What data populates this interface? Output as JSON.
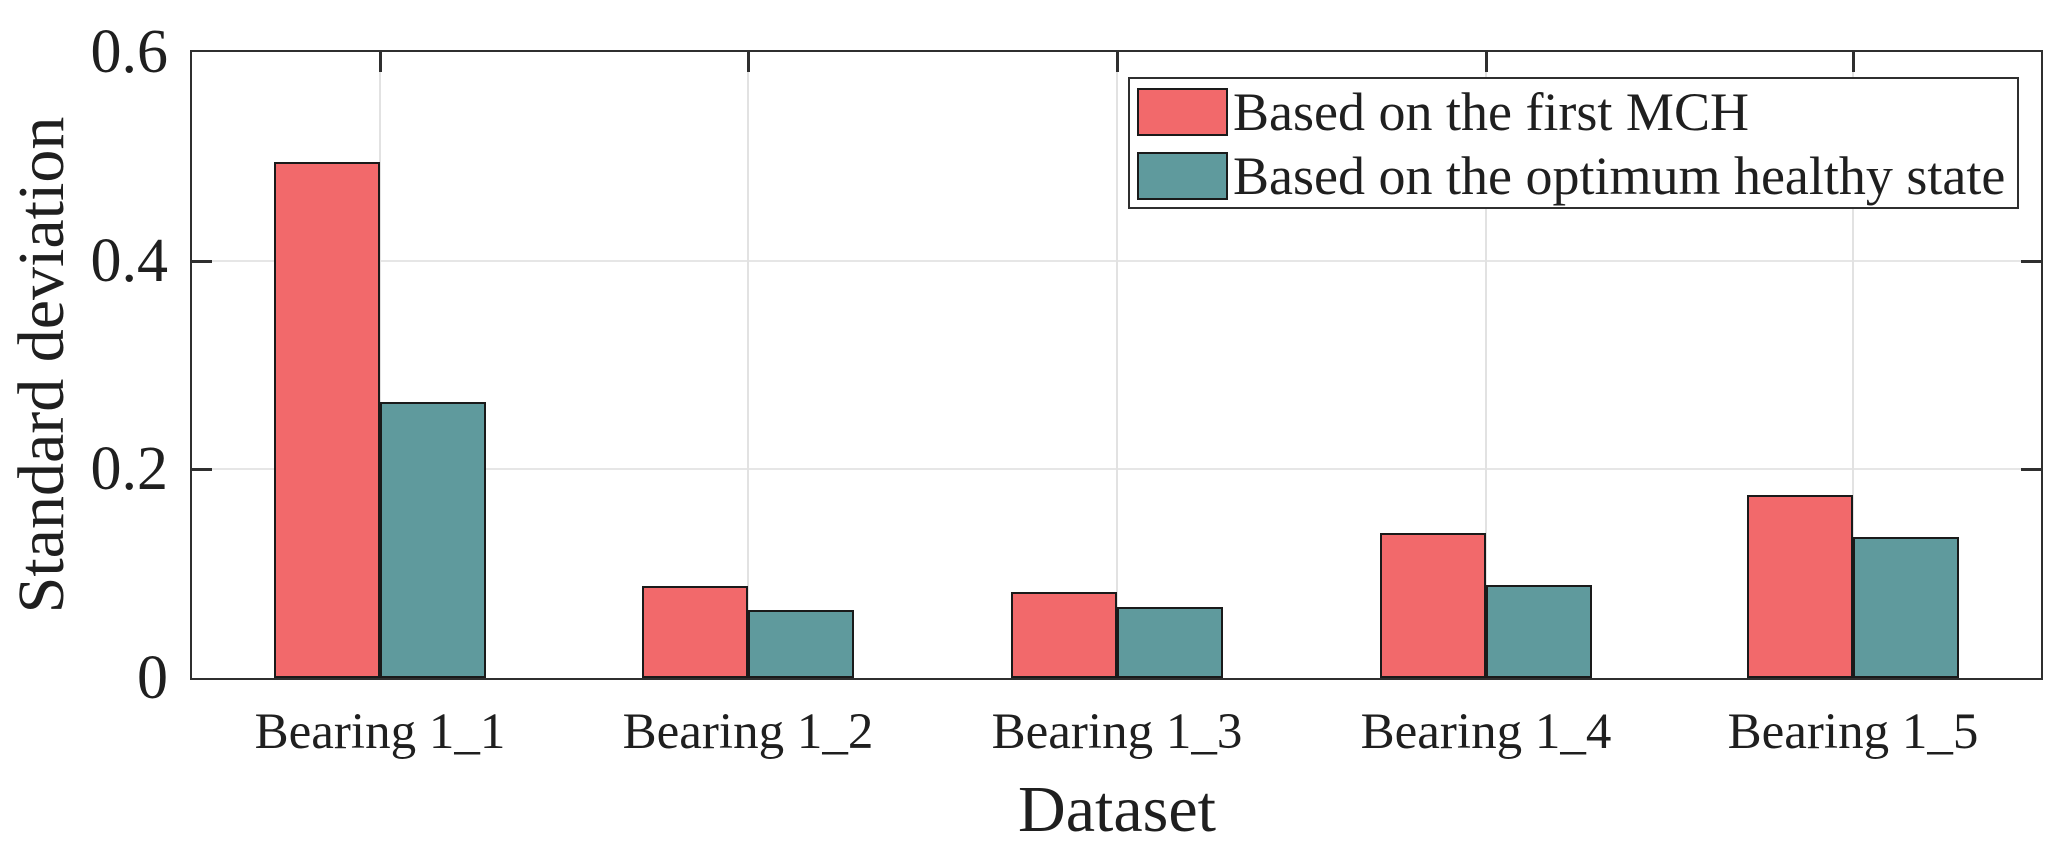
{
  "chart_data": {
    "type": "bar",
    "title": "",
    "xlabel": "Dataset",
    "ylabel": "Standard deviation",
    "categories": [
      "Bearing 1_1",
      "Bearing 1_2",
      "Bearing 1_3",
      "Bearing 1_4",
      "Bearing 1_5"
    ],
    "series": [
      {
        "name": "Based on the first MCH",
        "color": "#f2696b",
        "values": [
          0.495,
          0.088,
          0.082,
          0.139,
          0.175
        ]
      },
      {
        "name": "Based on the optimum healthy state",
        "color": "#5f9a9d",
        "values": [
          0.265,
          0.065,
          0.068,
          0.089,
          0.135
        ]
      }
    ],
    "ylim": [
      0,
      0.6
    ],
    "yticks": [
      0,
      0.2,
      0.4,
      0.6
    ],
    "ytick_labels": [
      "0",
      "0.2",
      "0.4",
      "0.6"
    ],
    "grid": "on",
    "legend_position": "top-right",
    "bar_edge_color": "#1a1a1a",
    "grid_color": "#e2e2e2",
    "axis_color": "#2f2f2f"
  }
}
